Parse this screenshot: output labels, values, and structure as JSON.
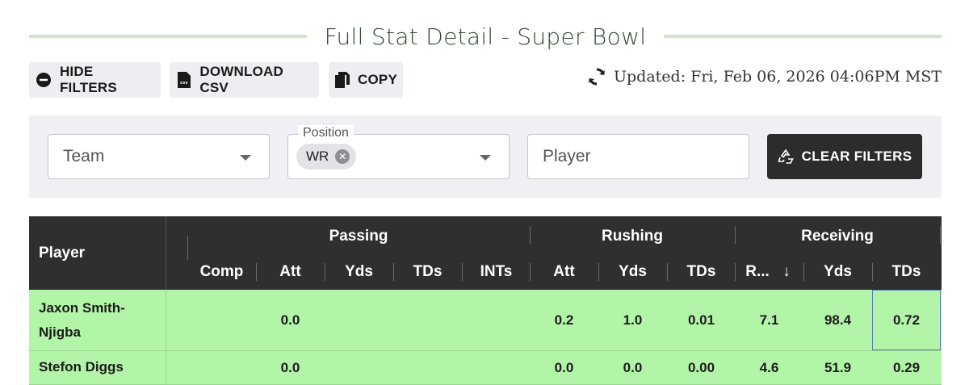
{
  "title": "Full Stat Detail - Super Bowl",
  "toolbar": {
    "hide_filters": "HIDE FILTERS",
    "download_csv": "DOWNLOAD CSV",
    "copy": "COPY",
    "updated": "Updated: Fri, Feb 06, 2026 04:06PM MST"
  },
  "filters": {
    "team_placeholder": "Team",
    "position_label": "Position",
    "position_chip": "WR",
    "player_placeholder": "Player",
    "clear_label": "CLEAR FILTERS"
  },
  "table": {
    "player_header": "Player",
    "groups": [
      "Passing",
      "Rushing",
      "Receiving"
    ],
    "subheaders": [
      "Comp",
      "Att",
      "Yds",
      "TDs",
      "INTs",
      "Att",
      "Yds",
      "TDs",
      "R...",
      "Yds",
      "TDs"
    ],
    "sort_indicator": "↓",
    "rows": [
      {
        "player_line1": "Jaxon Smith-",
        "player_line2": "Njigba",
        "cells": [
          "",
          "0.0",
          "",
          "",
          "",
          "0.2",
          "1.0",
          "0.01",
          "7.1",
          "98.4",
          "0.72"
        ]
      },
      {
        "player_line1": "Stefon Diggs",
        "player_line2": "",
        "cells": [
          "",
          "0.0",
          "",
          "",
          "",
          "0.0",
          "0.0",
          "0.00",
          "4.6",
          "51.9",
          "0.29"
        ]
      }
    ]
  },
  "colors": {
    "row_bg": "#b3f5a8",
    "header_bg": "#2f2f2f",
    "accent_rule": "#cfe6c9"
  },
  "icons": [
    "minus-circle-icon",
    "csv-file-icon",
    "copy-icon",
    "refresh-icon",
    "chevron-down-icon",
    "clear-chip-icon",
    "recycle-icon",
    "sort-down-icon"
  ]
}
